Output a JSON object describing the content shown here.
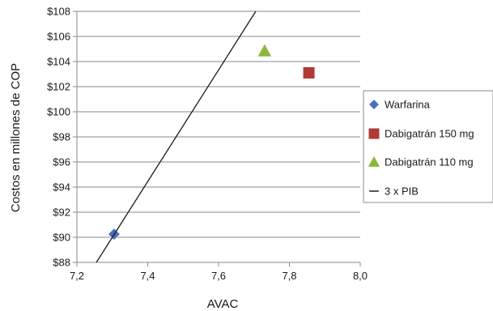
{
  "chart_data": {
    "type": "scatter",
    "xlabel": "AVAC",
    "ylabel": "Costos en millones de COP",
    "xlim": [
      7.2,
      8.0
    ],
    "ylim": [
      88,
      108
    ],
    "x_ticks": [
      "7,2",
      "7,4",
      "7,6",
      "7,8",
      "8,0"
    ],
    "y_ticks": [
      "$88",
      "$90",
      "$92",
      "$94",
      "$96",
      "$98",
      "$100",
      "$102",
      "$104",
      "$106",
      "$108"
    ],
    "grid": "horizontal",
    "legend_position": "right",
    "series": [
      {
        "name": "Warfarina",
        "marker": "diamond",
        "color": "#4a6fc0",
        "points": [
          {
            "x": 7.305,
            "y": 90.25
          }
        ]
      },
      {
        "name": "Dabigatrán 150 mg",
        "marker": "square",
        "color": "#b03a36",
        "points": [
          {
            "x": 7.855,
            "y": 103.1
          }
        ]
      },
      {
        "name": "Dabigatrán 110 mg",
        "marker": "triangle",
        "color": "#8db73c",
        "points": [
          {
            "x": 7.73,
            "y": 104.85
          }
        ]
      },
      {
        "name": "3 x PIB",
        "marker": "line",
        "color": "#1a1a1a",
        "line": [
          {
            "x": 7.255,
            "y": 88
          },
          {
            "x": 7.705,
            "y": 108
          }
        ]
      }
    ]
  }
}
